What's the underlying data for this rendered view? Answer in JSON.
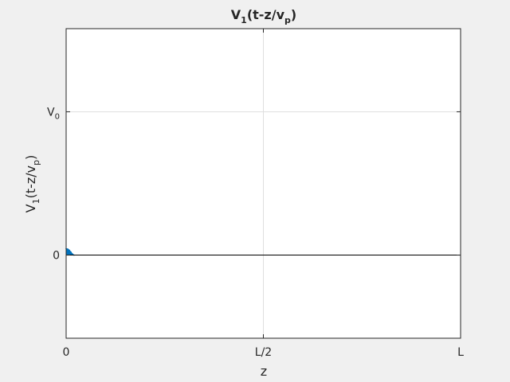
{
  "chart_data": {
    "type": "area",
    "title": "V₁(t-z/vₚ)",
    "title_parts": {
      "base": "V",
      "sub1": "1",
      "mid": "(t-z/v",
      "sub2": "p",
      "end": ")"
    },
    "xlabel": "z",
    "ylabel_parts": {
      "base": "V",
      "sub1": "1",
      "mid": "(t-z/v",
      "sub2": "p",
      "end": ")"
    },
    "x_ticks": [
      {
        "value": 0,
        "label": "0"
      },
      {
        "value": 0.5,
        "label": "L/2"
      },
      {
        "value": 1,
        "label": "L"
      }
    ],
    "y_ticks": [
      {
        "value": 0,
        "label": "0",
        "sub": ""
      },
      {
        "value": 1,
        "label": "V",
        "sub": "0"
      }
    ],
    "xlim": [
      0,
      1
    ],
    "ylim": [
      -0.58,
      1.58
    ],
    "grid": true,
    "baseline": 0,
    "series": [
      {
        "x": [
          0,
          0.004,
          0.008,
          0.012,
          0.016,
          0.02
        ],
        "y": [
          0.045,
          0.043,
          0.035,
          0.022,
          0.008,
          0
        ],
        "color": "#0072bd"
      }
    ]
  }
}
